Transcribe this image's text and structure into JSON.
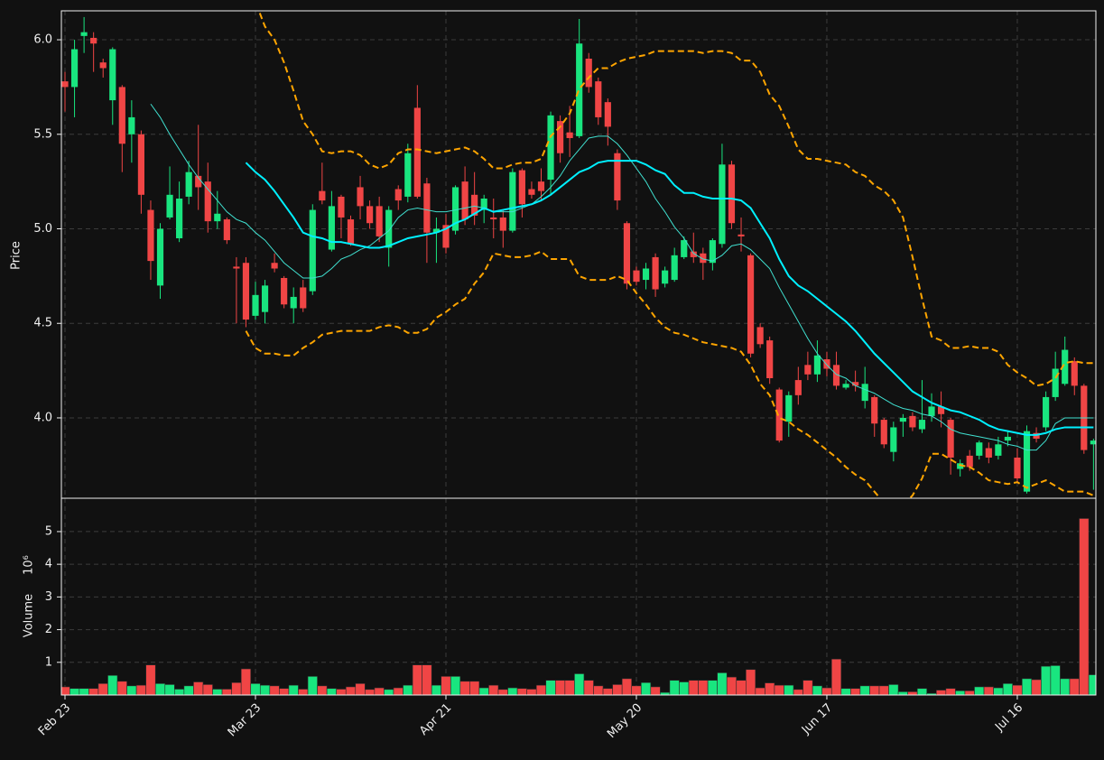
{
  "chart_data": [
    {
      "type": "candlestick",
      "y_label": "Price",
      "xlim": [
        -0.38,
        108.25
      ],
      "ylim": [
        3.575,
        6.153
      ],
      "yticks": [
        {
          "value": 4.0,
          "label": "4.0"
        },
        {
          "value": 4.5,
          "label": "4.5"
        },
        {
          "value": 5.0,
          "label": "5.0"
        },
        {
          "value": 5.5,
          "label": "5.5"
        },
        {
          "value": 6.0,
          "label": "6.0"
        }
      ],
      "grid": true,
      "up_color": "#19e57f",
      "down_color": "#f04545",
      "open": [
        5.78,
        5.75,
        6.02,
        6.01,
        5.88,
        5.68,
        5.75,
        5.5,
        5.5,
        5.1,
        4.7,
        5.06,
        4.95,
        5.17,
        5.28,
        5.25,
        5.04,
        5.05,
        4.8,
        4.82,
        4.54,
        4.56,
        4.82,
        4.74,
        4.58,
        4.69,
        4.67,
        5.2,
        4.89,
        5.17,
        5.05,
        5.22,
        5.12,
        5.12,
        4.9,
        5.21,
        5.17,
        5.64,
        5.24,
        4.98,
        5.02,
        4.99,
        5.25,
        5.18,
        5.1,
        5.06,
        5.06,
        4.99,
        5.31,
        5.21,
        5.25,
        5.26,
        5.57,
        5.51,
        5.49,
        5.9,
        5.78,
        5.67,
        5.4,
        5.03,
        4.78,
        4.73,
        4.85,
        4.71,
        4.73,
        4.85,
        4.88,
        4.87,
        4.82,
        4.92,
        5.34,
        4.97,
        4.86,
        4.48,
        4.41,
        4.15,
        3.98,
        4.2,
        4.28,
        4.23,
        4.31,
        4.28,
        4.16,
        4.19,
        4.09,
        4.11,
        3.99,
        3.82,
        3.98,
        4.01,
        3.94,
        4.01,
        4.06,
        3.99,
        3.73,
        3.8,
        3.8,
        3.84,
        3.8,
        3.88,
        3.79,
        3.61,
        3.92,
        3.95,
        4.11,
        4.18,
        4.3,
        4.17,
        3.86
      ],
      "high": [
        5.83,
        6.0,
        6.12,
        6.04,
        5.9,
        5.96,
        5.76,
        5.68,
        5.52,
        5.15,
        5.03,
        5.33,
        5.25,
        5.36,
        5.55,
        5.35,
        5.2,
        5.06,
        4.85,
        4.85,
        4.72,
        4.73,
        4.87,
        4.75,
        4.69,
        4.73,
        5.13,
        5.35,
        5.2,
        5.18,
        5.07,
        5.28,
        5.15,
        5.17,
        5.12,
        5.23,
        5.45,
        5.76,
        5.27,
        5.06,
        5.08,
        5.23,
        5.33,
        5.3,
        5.18,
        5.16,
        5.1,
        5.32,
        5.32,
        5.25,
        5.32,
        5.62,
        5.6,
        5.65,
        6.11,
        5.93,
        5.8,
        5.69,
        5.42,
        5.04,
        4.8,
        4.82,
        4.87,
        4.8,
        4.9,
        4.96,
        4.98,
        4.9,
        4.95,
        5.45,
        5.36,
        5.06,
        4.87,
        4.5,
        4.43,
        4.16,
        4.14,
        4.27,
        4.35,
        4.41,
        4.35,
        4.35,
        4.2,
        4.25,
        4.27,
        4.12,
        4.0,
        3.98,
        4.02,
        4.03,
        4.2,
        4.13,
        4.14,
        4.0,
        3.78,
        3.83,
        3.88,
        3.87,
        3.9,
        3.93,
        3.84,
        3.96,
        3.95,
        4.14,
        4.35,
        4.43,
        4.32,
        4.18,
        3.89
      ],
      "low": [
        5.62,
        5.59,
        5.93,
        5.83,
        5.8,
        5.55,
        5.3,
        5.35,
        5.08,
        4.73,
        4.63,
        5.05,
        4.93,
        5.13,
        5.1,
        4.98,
        5.0,
        4.92,
        4.5,
        4.48,
        4.52,
        4.5,
        4.77,
        4.58,
        4.5,
        4.56,
        4.65,
        5.13,
        4.88,
        4.95,
        4.91,
        5.05,
        5.0,
        4.93,
        4.8,
        5.1,
        5.14,
        5.16,
        4.82,
        4.82,
        4.87,
        4.97,
        5.02,
        5.02,
        5.03,
        4.95,
        4.9,
        4.98,
        5.06,
        5.16,
        5.15,
        5.18,
        5.35,
        5.38,
        5.48,
        5.72,
        5.55,
        5.44,
        5.1,
        4.68,
        4.7,
        4.68,
        4.64,
        4.69,
        4.72,
        4.84,
        4.82,
        4.73,
        4.78,
        4.9,
        5.0,
        4.88,
        4.32,
        4.37,
        4.18,
        3.87,
        3.9,
        4.07,
        4.2,
        4.19,
        4.22,
        4.15,
        4.15,
        4.14,
        4.05,
        3.9,
        3.84,
        3.77,
        3.9,
        3.93,
        3.92,
        3.98,
        3.95,
        3.7,
        3.69,
        3.72,
        3.78,
        3.76,
        3.78,
        3.85,
        3.66,
        3.6,
        3.87,
        3.93,
        4.09,
        4.17,
        4.12,
        3.81,
        3.62
      ],
      "close": [
        5.75,
        5.95,
        6.04,
        5.98,
        5.85,
        5.95,
        5.45,
        5.59,
        5.18,
        4.83,
        5.0,
        5.18,
        5.16,
        5.3,
        5.22,
        5.04,
        5.08,
        4.94,
        4.79,
        4.52,
        4.65,
        4.7,
        4.79,
        4.6,
        4.64,
        4.58,
        5.1,
        5.15,
        5.12,
        5.06,
        4.92,
        5.12,
        5.03,
        4.96,
        5.1,
        5.15,
        5.4,
        5.17,
        4.98,
        5.0,
        4.9,
        5.22,
        5.05,
        5.07,
        5.16,
        5.05,
        4.99,
        5.3,
        5.13,
        5.18,
        5.2,
        5.6,
        5.4,
        5.48,
        5.98,
        5.75,
        5.59,
        5.54,
        5.15,
        4.71,
        4.72,
        4.79,
        4.68,
        4.78,
        4.86,
        4.94,
        4.85,
        4.82,
        4.94,
        5.34,
        5.03,
        4.96,
        4.34,
        4.39,
        4.21,
        3.88,
        4.12,
        4.12,
        4.23,
        4.33,
        4.26,
        4.17,
        4.18,
        4.17,
        4.18,
        3.97,
        3.86,
        3.95,
        4.0,
        3.95,
        3.99,
        4.06,
        4.02,
        3.79,
        3.76,
        3.74,
        3.87,
        3.79,
        3.86,
        3.9,
        3.68,
        3.93,
        3.89,
        4.11,
        4.26,
        4.36,
        4.17,
        3.83,
        3.88
      ],
      "series": [
        {
          "color": "#40e0d0",
          "line_width": 1,
          "line_style": "solid",
          "values": [
            null,
            null,
            null,
            null,
            null,
            null,
            null,
            null,
            null,
            5.66,
            5.59,
            5.5,
            5.42,
            5.34,
            5.27,
            5.21,
            5.15,
            5.09,
            5.05,
            5.03,
            4.98,
            4.94,
            4.88,
            4.82,
            4.78,
            4.74,
            4.74,
            4.75,
            4.79,
            4.84,
            4.86,
            4.89,
            4.91,
            4.95,
            4.99,
            5.06,
            5.1,
            5.11,
            5.1,
            5.09,
            5.09,
            5.1,
            5.11,
            5.12,
            5.11,
            5.09,
            5.09,
            5.09,
            5.11,
            5.13,
            5.17,
            5.22,
            5.28,
            5.36,
            5.42,
            5.48,
            5.49,
            5.49,
            5.45,
            5.39,
            5.32,
            5.25,
            5.16,
            5.09,
            5.01,
            4.95,
            4.87,
            4.84,
            4.83,
            4.86,
            4.91,
            4.92,
            4.89,
            4.84,
            4.79,
            4.69,
            4.6,
            4.51,
            4.42,
            4.34,
            4.28,
            4.23,
            4.21,
            4.17,
            4.15,
            4.13,
            4.1,
            4.07,
            4.05,
            4.04,
            4.02,
            4.01,
            3.98,
            3.94,
            3.92,
            3.91,
            3.9,
            3.89,
            3.88,
            3.86,
            3.85,
            3.83,
            3.83,
            3.88,
            3.97,
            4.0,
            4.0,
            4.0,
            4.0
          ]
        },
        {
          "color": "#00f0ff",
          "line_width": 2,
          "line_style": "solid",
          "values": [
            null,
            null,
            null,
            null,
            null,
            null,
            null,
            null,
            null,
            null,
            null,
            null,
            null,
            null,
            null,
            null,
            null,
            null,
            null,
            5.35,
            5.3,
            5.26,
            5.2,
            5.13,
            5.06,
            4.98,
            4.96,
            4.95,
            4.93,
            4.93,
            4.92,
            4.91,
            4.9,
            4.9,
            4.91,
            4.93,
            4.95,
            4.96,
            4.97,
            4.98,
            5.0,
            5.03,
            5.05,
            5.08,
            5.11,
            5.09,
            5.1,
            5.11,
            5.12,
            5.13,
            5.15,
            5.18,
            5.22,
            5.26,
            5.3,
            5.32,
            5.35,
            5.36,
            5.36,
            5.36,
            5.36,
            5.34,
            5.31,
            5.29,
            5.23,
            5.19,
            5.19,
            5.17,
            5.16,
            5.16,
            5.16,
            5.15,
            5.11,
            5.03,
            4.95,
            4.84,
            4.75,
            4.7,
            4.67,
            4.63,
            4.59,
            4.55,
            4.51,
            4.46,
            4.4,
            4.34,
            4.29,
            4.24,
            4.19,
            4.14,
            4.11,
            4.08,
            4.06,
            4.04,
            4.03,
            4.01,
            3.99,
            3.96,
            3.94,
            3.93,
            3.92,
            3.91,
            3.91,
            3.92,
            3.94,
            3.95,
            3.95,
            3.95,
            3.95
          ]
        },
        {
          "color": "#ffa500",
          "line_width": 2,
          "line_style": "dashed",
          "values": [
            null,
            null,
            null,
            null,
            null,
            null,
            null,
            null,
            null,
            null,
            null,
            null,
            null,
            null,
            null,
            null,
            null,
            null,
            null,
            6.28,
            6.2,
            6.07,
            6.0,
            5.88,
            5.73,
            5.57,
            5.5,
            5.41,
            5.4,
            5.41,
            5.41,
            5.39,
            5.34,
            5.32,
            5.34,
            5.4,
            5.42,
            5.42,
            5.41,
            5.4,
            5.41,
            5.42,
            5.43,
            5.41,
            5.37,
            5.32,
            5.32,
            5.34,
            5.35,
            5.35,
            5.37,
            5.49,
            5.54,
            5.61,
            5.74,
            5.8,
            5.85,
            5.85,
            5.88,
            5.9,
            5.91,
            5.92,
            5.94,
            5.94,
            5.94,
            5.94,
            5.94,
            5.93,
            5.94,
            5.94,
            5.93,
            5.89,
            5.89,
            5.83,
            5.71,
            5.65,
            5.54,
            5.42,
            5.37,
            5.37,
            5.36,
            5.35,
            5.34,
            5.3,
            5.28,
            5.23,
            5.2,
            5.15,
            5.06,
            4.85,
            4.63,
            4.43,
            4.41,
            4.37,
            4.37,
            4.38,
            4.37,
            4.37,
            4.35,
            4.28,
            4.24,
            4.21,
            4.17,
            4.18,
            4.21,
            4.29,
            4.3,
            4.29,
            4.29
          ]
        },
        {
          "color": "#ffa500",
          "line_width": 2,
          "line_style": "dashed",
          "values": [
            null,
            null,
            null,
            null,
            null,
            null,
            null,
            null,
            null,
            null,
            null,
            null,
            null,
            null,
            null,
            null,
            null,
            null,
            null,
            4.46,
            4.37,
            4.34,
            4.34,
            4.33,
            4.33,
            4.37,
            4.4,
            4.44,
            4.45,
            4.46,
            4.46,
            4.46,
            4.46,
            4.48,
            4.49,
            4.48,
            4.45,
            4.45,
            4.47,
            4.53,
            4.56,
            4.6,
            4.63,
            4.71,
            4.77,
            4.87,
            4.86,
            4.85,
            4.85,
            4.86,
            4.88,
            4.84,
            4.84,
            4.84,
            4.75,
            4.73,
            4.73,
            4.73,
            4.75,
            4.73,
            4.66,
            4.6,
            4.53,
            4.48,
            4.45,
            4.44,
            4.42,
            4.4,
            4.39,
            4.38,
            4.37,
            4.35,
            4.28,
            4.18,
            4.12,
            4.0,
            3.98,
            3.94,
            3.91,
            3.87,
            3.83,
            3.79,
            3.74,
            3.7,
            3.67,
            3.61,
            3.55,
            3.51,
            3.54,
            3.59,
            3.68,
            3.81,
            3.81,
            3.78,
            3.75,
            3.74,
            3.71,
            3.67,
            3.66,
            3.65,
            3.66,
            3.63,
            3.65,
            3.67,
            3.64,
            3.61,
            3.61,
            3.61,
            3.59
          ]
        }
      ]
    },
    {
      "type": "bar",
      "y_label": "Volume",
      "y_unit": "10⁶",
      "xlim": [
        -0.38,
        108.25
      ],
      "ylim": [
        0,
        6.02
      ],
      "yticks": [
        1,
        2,
        3,
        4,
        5
      ],
      "grid": true,
      "categories": [
        "Feb 23",
        null,
        null,
        null,
        null,
        null,
        null,
        null,
        null,
        null,
        null,
        null,
        null,
        null,
        null,
        null,
        null,
        null,
        null,
        null,
        "Mar 23",
        null,
        null,
        null,
        null,
        null,
        null,
        null,
        null,
        null,
        null,
        null,
        null,
        null,
        null,
        null,
        null,
        null,
        null,
        null,
        "Apr 21",
        null,
        null,
        null,
        null,
        null,
        null,
        null,
        null,
        null,
        null,
        null,
        null,
        null,
        null,
        null,
        null,
        null,
        null,
        null,
        "May 20",
        null,
        null,
        null,
        null,
        null,
        null,
        null,
        null,
        null,
        null,
        null,
        null,
        null,
        null,
        null,
        null,
        null,
        null,
        null,
        "Jun 17",
        null,
        null,
        null,
        null,
        null,
        null,
        null,
        null,
        null,
        null,
        null,
        null,
        null,
        null,
        null,
        null,
        null,
        null,
        null,
        "Jul 16",
        null,
        null,
        null,
        null,
        null,
        null,
        null,
        null
      ],
      "values": [
        0.25,
        0.2,
        0.2,
        0.2,
        0.35,
        0.6,
        0.42,
        0.28,
        0.3,
        0.92,
        0.35,
        0.32,
        0.18,
        0.28,
        0.4,
        0.32,
        0.18,
        0.18,
        0.38,
        0.8,
        0.35,
        0.3,
        0.28,
        0.2,
        0.3,
        0.18,
        0.57,
        0.28,
        0.2,
        0.18,
        0.25,
        0.35,
        0.17,
        0.22,
        0.17,
        0.22,
        0.3,
        0.92,
        0.92,
        0.3,
        0.57,
        0.57,
        0.42,
        0.42,
        0.22,
        0.3,
        0.17,
        0.22,
        0.2,
        0.18,
        0.3,
        0.45,
        0.45,
        0.45,
        0.65,
        0.45,
        0.28,
        0.2,
        0.32,
        0.5,
        0.28,
        0.38,
        0.25,
        0.08,
        0.45,
        0.4,
        0.45,
        0.45,
        0.45,
        0.68,
        0.55,
        0.45,
        0.78,
        0.22,
        0.37,
        0.3,
        0.3,
        0.17,
        0.45,
        0.28,
        0.22,
        1.1,
        0.2,
        0.2,
        0.28,
        0.28,
        0.28,
        0.32,
        0.1,
        0.1,
        0.2,
        0.05,
        0.15,
        0.2,
        0.13,
        0.13,
        0.25,
        0.25,
        0.22,
        0.35,
        0.3,
        0.5,
        0.47,
        0.88,
        0.9,
        0.5,
        0.5,
        5.4,
        0.62
      ]
    }
  ]
}
